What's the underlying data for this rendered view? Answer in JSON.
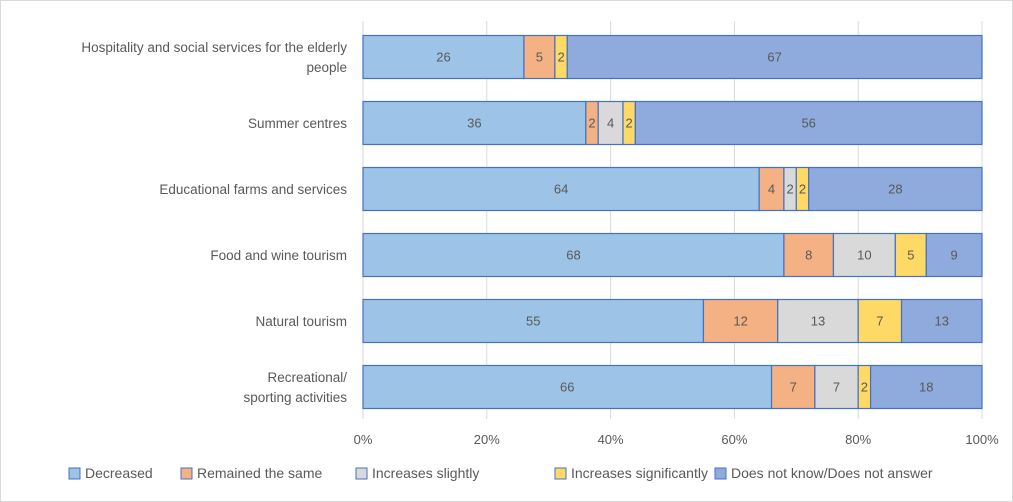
{
  "chart_data": {
    "type": "bar",
    "orientation": "horizontal",
    "stacked": "percent",
    "categories": [
      [
        "Hospitality and social services for the elderly",
        "people"
      ],
      [
        "Summer centres"
      ],
      [
        "Educational farms and services"
      ],
      [
        "Food and wine tourism"
      ],
      [
        "Natural tourism"
      ],
      [
        "Recreational/",
        "sporting activities"
      ]
    ],
    "series": [
      {
        "name": "Decreased",
        "color": "#9dc3e6",
        "values": [
          26,
          36,
          64,
          68,
          55,
          66
        ]
      },
      {
        "name": "Remained the same",
        "color": "#f4b183",
        "values": [
          5,
          2,
          4,
          8,
          12,
          7
        ]
      },
      {
        "name": "Increases slightly",
        "color": "#d9d9d9",
        "values": [
          0,
          4,
          2,
          10,
          13,
          7
        ]
      },
      {
        "name": "Increases significantly",
        "color": "#ffd966",
        "values": [
          2,
          2,
          2,
          5,
          7,
          2
        ]
      },
      {
        "name": "Does not know/Does not answer",
        "color": "#8faadc",
        "values": [
          67,
          56,
          28,
          9,
          13,
          18
        ]
      }
    ],
    "xlim": [
      0,
      100
    ],
    "xticks": [
      "0%",
      "20%",
      "40%",
      "60%",
      "80%",
      "100%"
    ],
    "grid": "vertical",
    "legend": "bottom"
  }
}
